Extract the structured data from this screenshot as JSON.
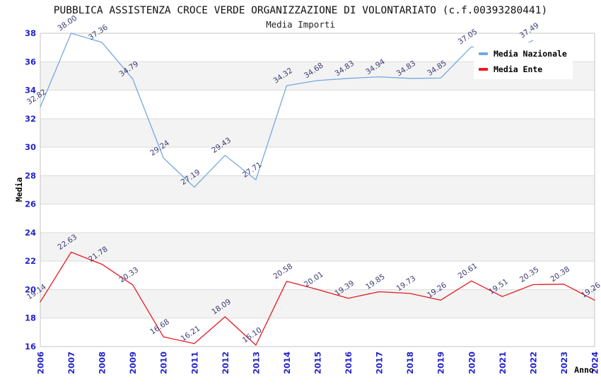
{
  "chart_data": {
    "type": "line",
    "title": "PUBBLICA ASSISTENZA CROCE VERDE ORGANIZZAZIONE DI VOLONTARIATO (c.f.00393280441)",
    "subtitle": "Media Importi",
    "xlabel": "Anno",
    "ylabel": "Media",
    "x": [
      2006,
      2007,
      2008,
      2009,
      2010,
      2011,
      2012,
      2013,
      2014,
      2015,
      2016,
      2017,
      2018,
      2019,
      2020,
      2021,
      2022,
      2023,
      2024
    ],
    "ylim": [
      16,
      38
    ],
    "ytick_step": 2,
    "grid": "horizontal gridlines every 2 units with alternating light-gray bands",
    "legend_position": "top-right",
    "series": [
      {
        "name": "Media Nazionale",
        "color": "#74a9df",
        "years": [
          2006,
          2007,
          2008,
          2009,
          2010,
          2011,
          2012,
          2013,
          2014,
          2015,
          2016,
          2017,
          2018,
          2019,
          2020,
          2021,
          2022
        ],
        "values": [
          32.82,
          38.0,
          37.36,
          34.79,
          29.24,
          27.19,
          29.43,
          27.71,
          34.32,
          34.68,
          34.83,
          34.94,
          34.83,
          34.85,
          37.05,
          36.56,
          37.49
        ],
        "labels": [
          "32.82",
          "38.00",
          "37.36",
          "34.79",
          "29.24",
          "27.19",
          "29.43",
          "27.71",
          "34.32",
          "34.68",
          "34.83",
          "34.94",
          "34.83",
          "34.85",
          "37.05",
          "",
          "37.49"
        ]
      },
      {
        "name": "Media Ente",
        "color": "#e8191f",
        "years": [
          2006,
          2007,
          2008,
          2009,
          2010,
          2011,
          2012,
          2013,
          2014,
          2015,
          2016,
          2017,
          2018,
          2019,
          2020,
          2021,
          2022,
          2023,
          2024
        ],
        "values": [
          19.14,
          22.63,
          21.78,
          20.33,
          16.68,
          16.21,
          18.09,
          16.1,
          20.58,
          20.01,
          19.39,
          19.85,
          19.73,
          19.26,
          20.61,
          19.51,
          20.35,
          20.38,
          19.26
        ],
        "labels": [
          "19.14",
          "22.63",
          "21.78",
          "20.33",
          "16.68",
          "16.21",
          "18.09",
          "16.10",
          "20.58",
          "20.01",
          "19.39",
          "19.85",
          "19.73",
          "19.26",
          "20.61",
          "19.51",
          "20.35",
          "20.38",
          "19.26"
        ]
      }
    ],
    "style": {
      "tick_label_color": "#2424cc",
      "data_label_color": "#3c3c74",
      "band_color": "#f3f3f3",
      "gridline_color": "#dcdcdc",
      "border_color": "#c6c6c6",
      "background": "#ffffff"
    }
  }
}
